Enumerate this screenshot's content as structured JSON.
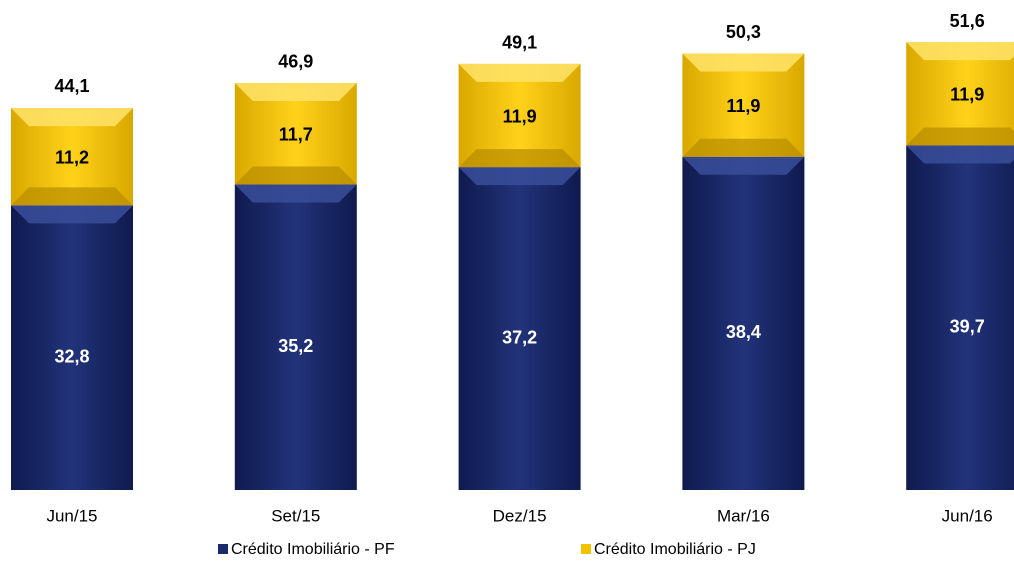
{
  "chart_data": {
    "type": "stacked_bar",
    "categories": [
      "Jun/15",
      "Set/15",
      "Dez/15",
      "Mar/16",
      "Jun/16"
    ],
    "series": [
      {
        "name": "Crédito Imobiliário - PF",
        "color": "#1b2a6b",
        "values": [
          32.8,
          35.2,
          37.2,
          38.4,
          39.7
        ],
        "value_labels": [
          "32,8",
          "35,2",
          "37,2",
          "38,4",
          "39,7"
        ]
      },
      {
        "name": "Crédito Imobiliário - PJ",
        "color": "#f2c200",
        "values": [
          11.2,
          11.7,
          11.9,
          11.9,
          11.9
        ],
        "value_labels": [
          "11,2",
          "11,7",
          "11,9",
          "11,9",
          "11,9"
        ]
      }
    ],
    "totals": [
      44.1,
      46.9,
      49.1,
      50.3,
      51.6
    ],
    "total_labels": [
      "44,1",
      "46,9",
      "49,1",
      "50,3",
      "51,6"
    ],
    "ylim": [
      0,
      56
    ]
  }
}
